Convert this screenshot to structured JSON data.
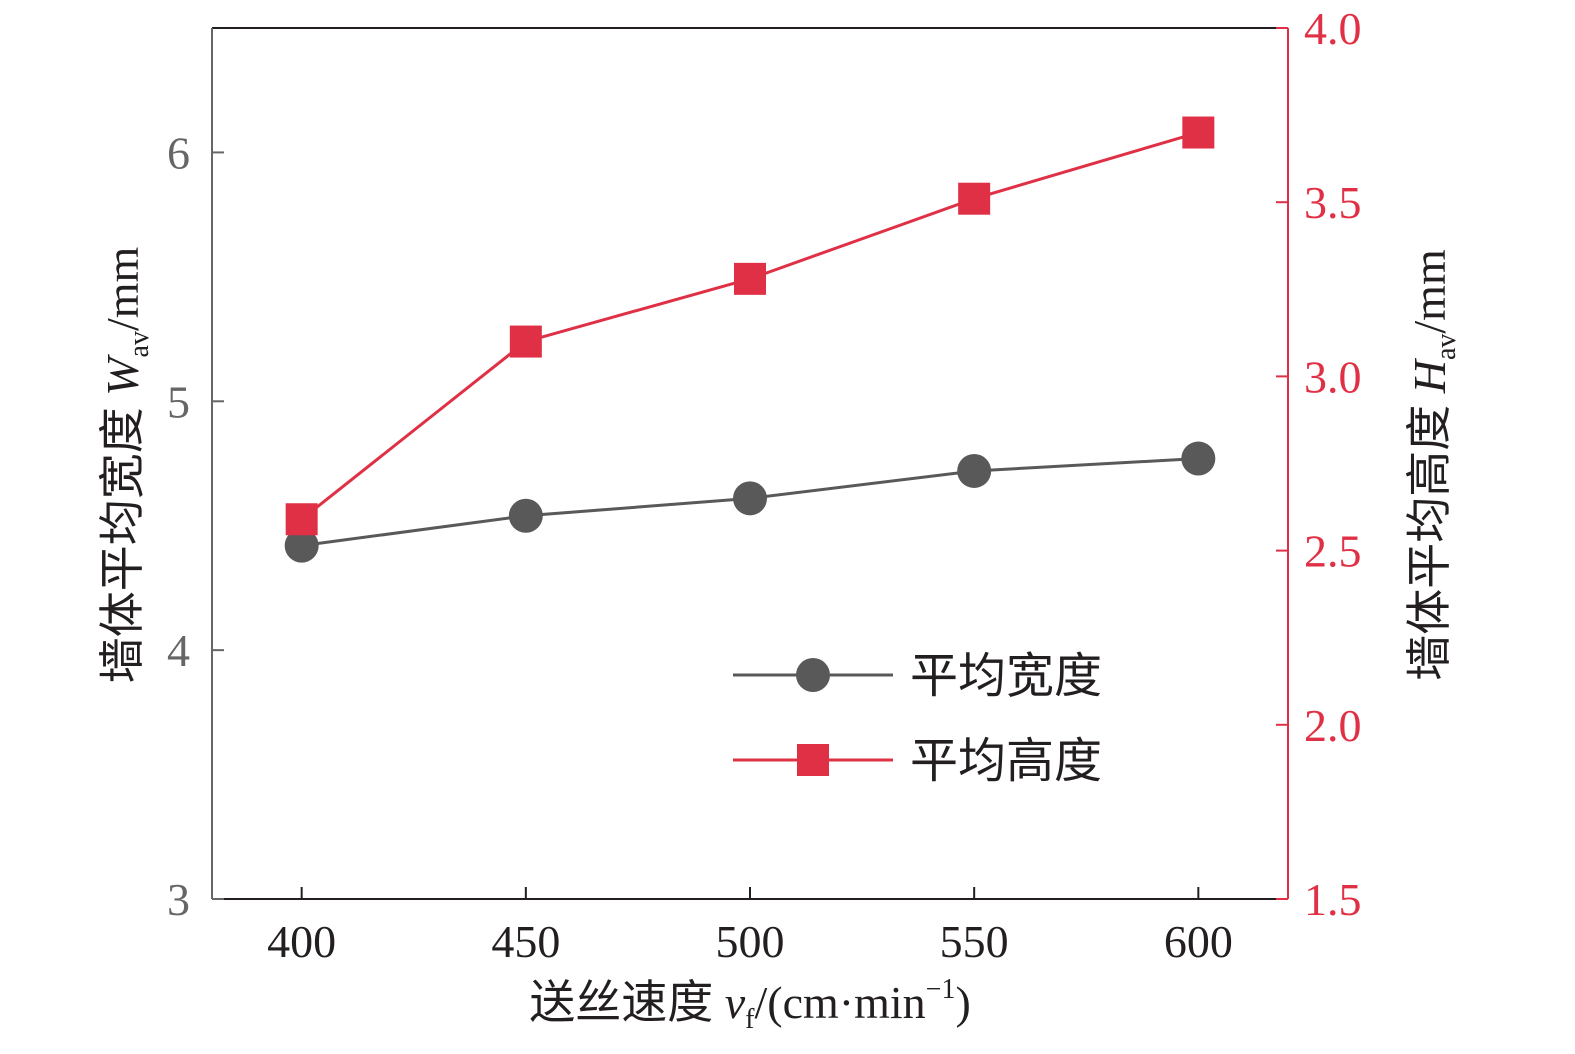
{
  "chart_data": {
    "type": "line",
    "x": [
      400,
      450,
      500,
      550,
      600
    ],
    "xlim": [
      380,
      620
    ],
    "xticks": [
      "400",
      "450",
      "500",
      "550",
      "600"
    ],
    "xlabel": "送丝速度 vf/(cm·min−1)",
    "xlabel_parts": {
      "main": "送丝速度 ",
      "var": "v",
      "sub": "f",
      "unit_open": "/(cm·min",
      "sup": "−1",
      "unit_close": ")"
    },
    "y_left": {
      "ylim": [
        3,
        6.5
      ],
      "ticks": [
        "3",
        "4",
        "5",
        "6"
      ],
      "label": "墙体平均宽度 Wav/mm",
      "label_parts": {
        "main": "墙体平均宽度 ",
        "var": "W",
        "sub": "av",
        "unit": "/mm"
      },
      "color": "#666666"
    },
    "y_right": {
      "ylim": [
        1.5,
        4.0
      ],
      "ticks": [
        "1.5",
        "2.0",
        "2.5",
        "3.0",
        "3.5",
        "4.0"
      ],
      "label": "墙体平均高度 Hav/mm",
      "label_parts": {
        "main": "墙体平均高度 ",
        "var": "H",
        "sub": "av",
        "unit": "/mm"
      },
      "color": "#e03046"
    },
    "series": [
      {
        "name": "平均宽度",
        "axis": "left",
        "marker": "circle",
        "color": "#595959",
        "values": [
          4.42,
          4.54,
          4.61,
          4.72,
          4.77
        ]
      },
      {
        "name": "平均高度",
        "axis": "right",
        "marker": "square",
        "color": "#e03046",
        "values": [
          2.59,
          3.1,
          3.28,
          3.51,
          3.7
        ]
      }
    ],
    "legend_position": "bottom-right",
    "grid": false
  }
}
